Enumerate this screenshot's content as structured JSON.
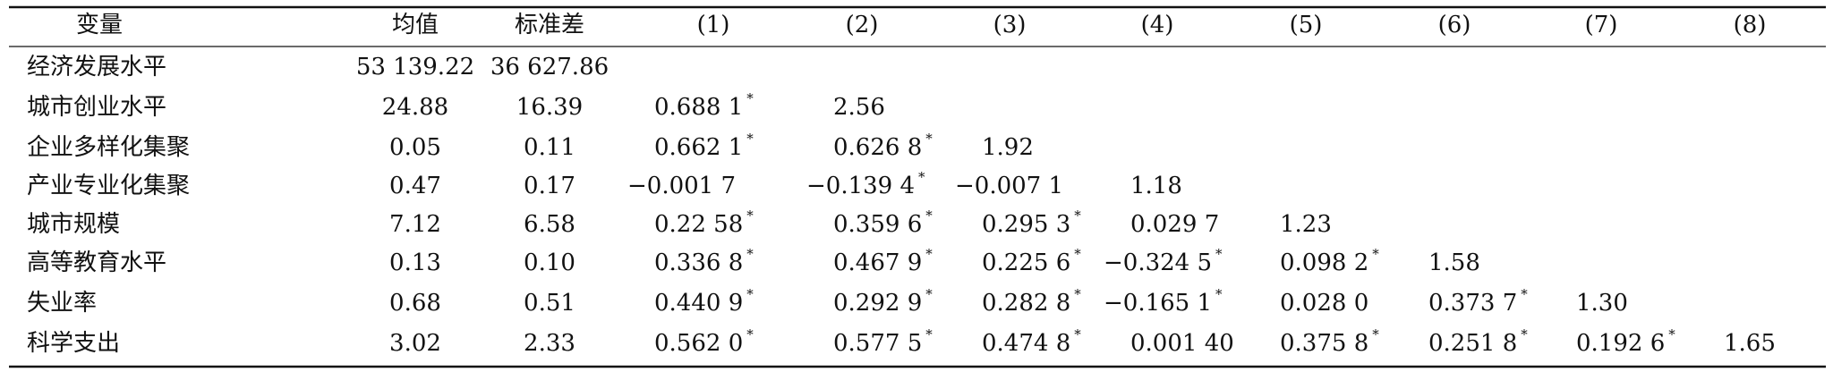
{
  "table": {
    "header": [
      "变量",
      "均值",
      "标准差",
      "(1)",
      "(2)",
      "(3)",
      "(4)",
      "(5)",
      "(6)",
      "(7)",
      "(8)"
    ],
    "rows": [
      {
        "label": "经济发展水平",
        "cells": [
          "53 139.22",
          "36 627.86"
        ]
      },
      {
        "label": "城市创业水平",
        "cells": [
          "24.88",
          "16.39",
          {
            "text": "0.688 1",
            "sup": "*"
          },
          "2.56"
        ]
      },
      {
        "label": "企业多样化集聚",
        "cells": [
          "0.05",
          "0.11",
          {
            "text": "0.662 1",
            "sup": "*"
          },
          {
            "text": "0.626 8",
            "sup": "*"
          },
          "1.92"
        ]
      },
      {
        "label": "产业专业化集聚",
        "cells": [
          "0.47",
          "0.17",
          "−0.001 7",
          {
            "text": "−0.139 4",
            "sup": "*"
          },
          "−0.007 1",
          "1.18"
        ]
      },
      {
        "label": "城市规模",
        "cells": [
          "7.12",
          "6.58",
          {
            "text": "0.22 58",
            "sup": "*"
          },
          {
            "text": "0.359 6",
            "sup": "*"
          },
          {
            "text": "0.295 3",
            "sup": "*"
          },
          "0.029 7",
          "1.23"
        ]
      },
      {
        "label": "高等教育水平",
        "cells": [
          "0.13",
          "0.10",
          {
            "text": "0.336 8",
            "sup": "*"
          },
          {
            "text": "0.467 9",
            "sup": "*"
          },
          {
            "text": "0.225 6",
            "sup": "*"
          },
          {
            "text": "−0.324 5",
            "sup": "*"
          },
          {
            "text": "0.098 2",
            "sup": "*"
          },
          "1.58"
        ]
      },
      {
        "label": "失业率",
        "cells": [
          "0.68",
          "0.51",
          {
            "text": "0.440 9",
            "sup": "*"
          },
          {
            "text": "0.292 9",
            "sup": "*"
          },
          {
            "text": "0.282 8",
            "sup": "*"
          },
          {
            "text": "−0.165 1",
            "sup": "*"
          },
          "0.028 0",
          {
            "text": "0.373 7",
            "sup": "*"
          },
          "1.30"
        ]
      },
      {
        "label": "科学支出",
        "cells": [
          "3.02",
          "2.33",
          {
            "text": "0.562 0",
            "sup": "*"
          },
          {
            "text": "0.577 5",
            "sup": "*"
          },
          {
            "text": "0.474 8",
            "sup": "*"
          },
          "0.001 40",
          {
            "text": "0.375 8",
            "sup": "*"
          },
          {
            "text": "0.251 8",
            "sup": "*"
          },
          {
            "text": "0.192 6",
            "sup": "*"
          },
          "1.65"
        ]
      }
    ]
  }
}
